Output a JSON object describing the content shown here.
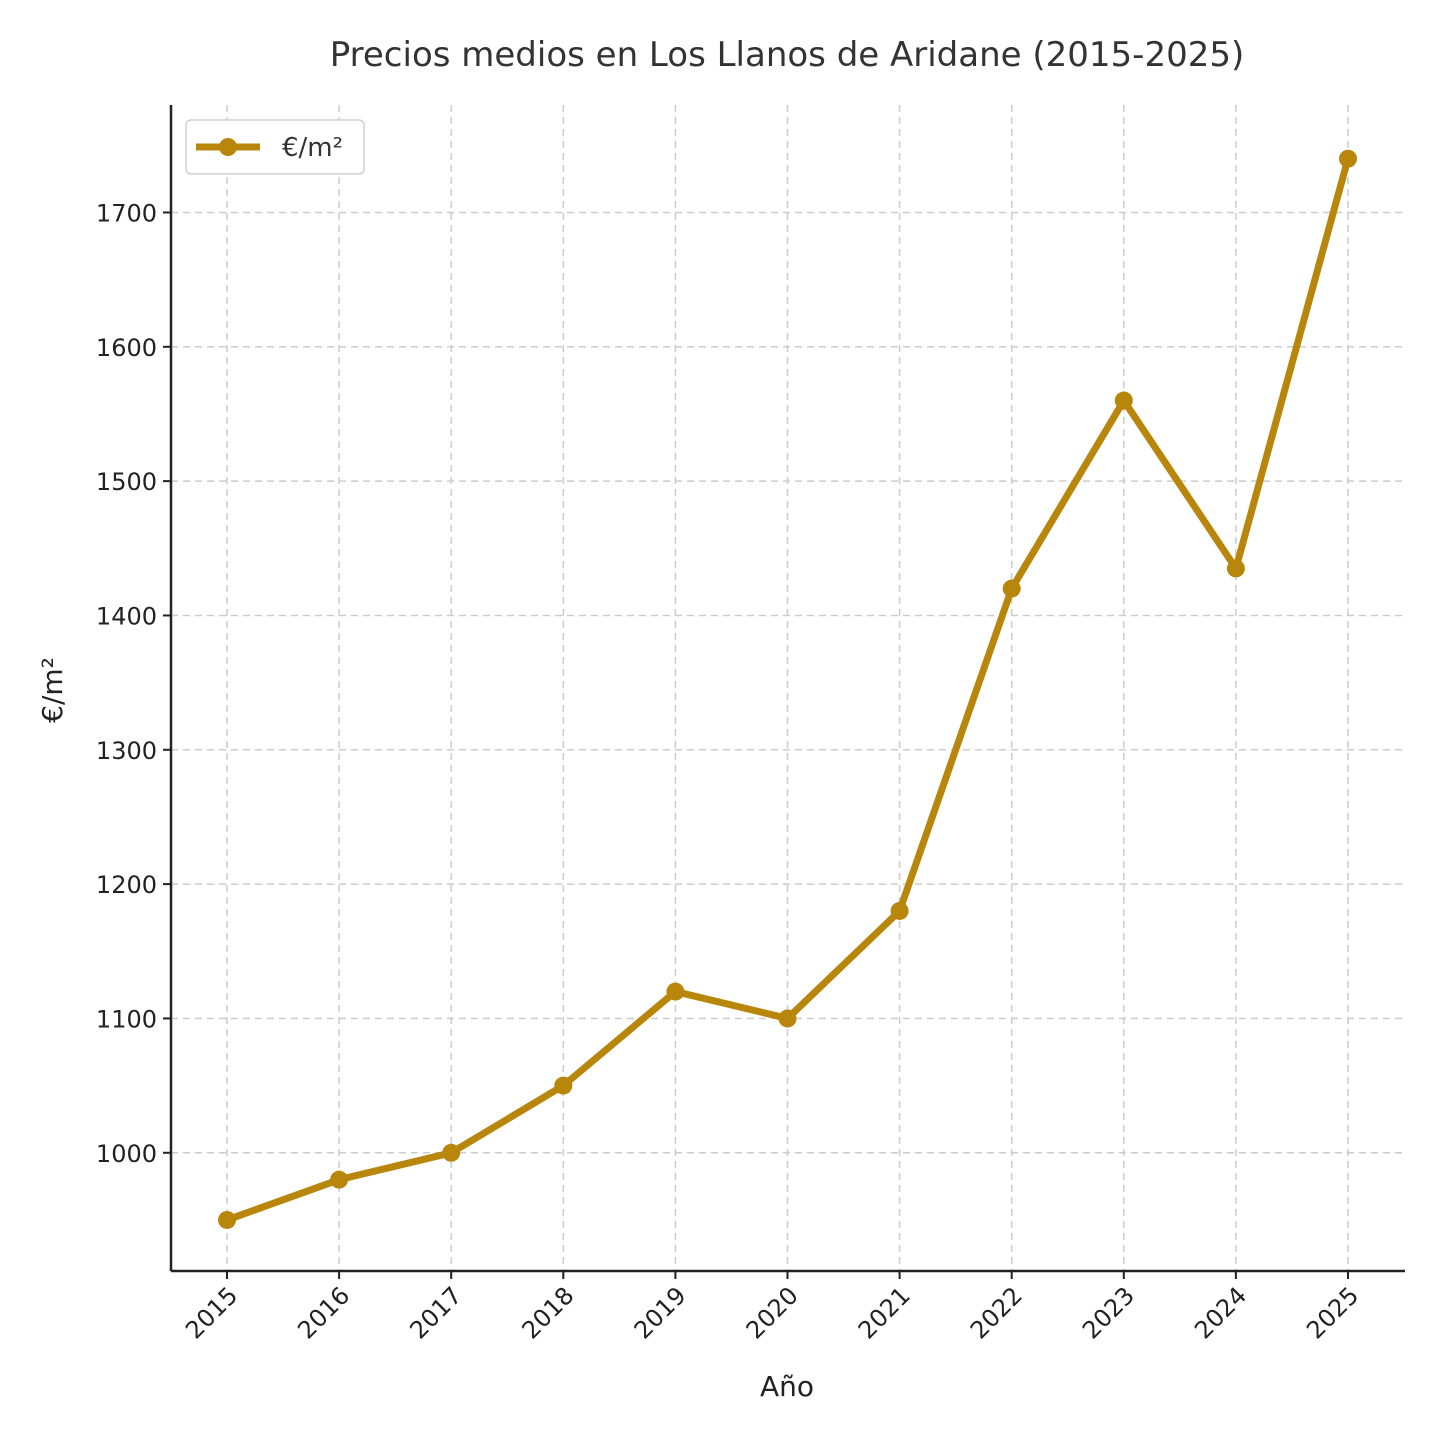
{
  "chart_data": {
    "type": "line",
    "title": "Precios medios en Los Llanos de Aridane (2015-2025)",
    "xlabel": "Año",
    "ylabel": "€/m²",
    "x": [
      "2015",
      "2016",
      "2017",
      "2018",
      "2019",
      "2020",
      "2021",
      "2022",
      "2023",
      "2024",
      "2025"
    ],
    "series": [
      {
        "name": "€/m²",
        "values": [
          950,
          980,
          1000,
          1050,
          1120,
          1100,
          1180,
          1420,
          1560,
          1435,
          1740
        ]
      }
    ],
    "yticks": [
      1000,
      1100,
      1200,
      1300,
      1400,
      1500,
      1600,
      1700
    ],
    "ylim": [
      912,
      1780
    ],
    "grid": true,
    "legend_position": "top-left",
    "line_color": "#B8860B"
  }
}
